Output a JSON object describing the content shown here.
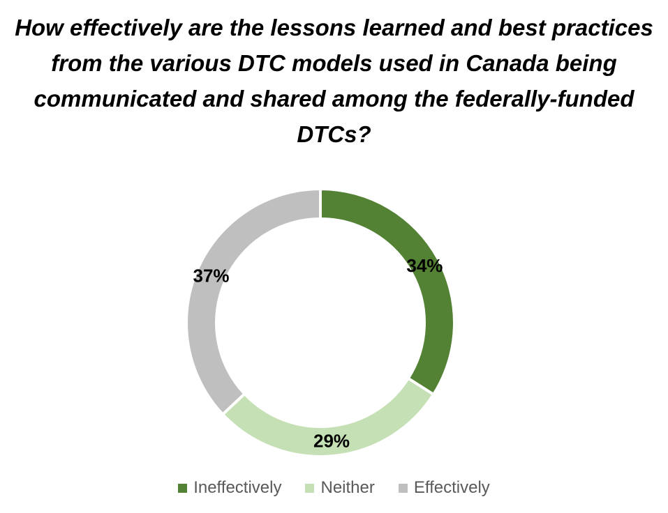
{
  "chart_data": {
    "type": "pie",
    "variant": "donut",
    "title": "How effectively are the lessons learned and best practices from the various DTC models used in Canada being communicated and shared among the federally-funded DTCs?",
    "categories": [
      "Ineffectively",
      "Neither",
      "Effectively"
    ],
    "values": [
      34,
      29,
      37
    ],
    "data_labels": [
      "34%",
      "29%",
      "37%"
    ],
    "colors": [
      "#548235",
      "#c5e0b4",
      "#bfbfbf"
    ],
    "legend": {
      "position": "bottom",
      "entries": [
        "Ineffectively",
        "Neither",
        "Effectively"
      ]
    }
  }
}
